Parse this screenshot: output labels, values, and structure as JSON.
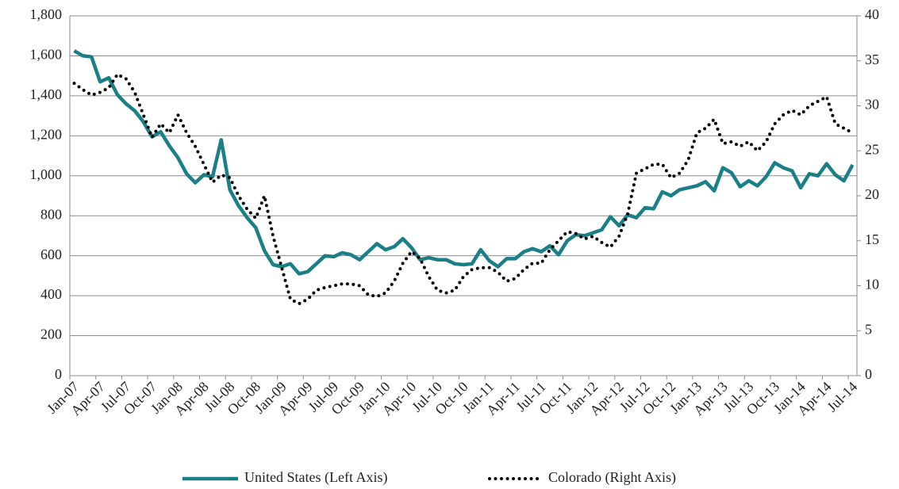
{
  "chart_data": {
    "type": "line",
    "categories": [
      "Jan-07",
      null,
      null,
      "Apr-07",
      null,
      null,
      "Jul-07",
      null,
      null,
      "Oct-07",
      null,
      null,
      "Jan-08",
      null,
      null,
      "Apr-08",
      null,
      null,
      "Jul-08",
      null,
      null,
      "Oct-08",
      null,
      null,
      "Jan-09",
      null,
      null,
      "Apr-09",
      null,
      null,
      "Jul-09",
      null,
      null,
      "Oct-09",
      null,
      null,
      "Jan-10",
      null,
      null,
      "Apr-10",
      null,
      null,
      "Jul-10",
      null,
      null,
      "Oct-10",
      null,
      null,
      "Jan-11",
      null,
      null,
      "Apr-11",
      null,
      null,
      "Jul-11",
      null,
      null,
      "Oct-11",
      null,
      null,
      "Jan-12",
      null,
      null,
      "Apr-12",
      null,
      null,
      "Jul-12",
      null,
      null,
      "Oct-12",
      null,
      null,
      "Jan-13",
      null,
      null,
      "Apr-13",
      null,
      null,
      "Jul-13",
      null,
      null,
      "Oct-13",
      null,
      null,
      "Jan-14",
      null,
      null,
      "Apr-14",
      null,
      null,
      "Jul-14"
    ],
    "series": [
      {
        "name": "United States (Left Axis)",
        "color": "#1a7f86",
        "style": "solid",
        "axis": "y",
        "values": [
          1625,
          1600,
          1595,
          1470,
          1490,
          1405,
          1360,
          1325,
          1270,
          1195,
          1220,
          1150,
          1090,
          1010,
          965,
          1005,
          995,
          1180,
          930,
          850,
          790,
          740,
          625,
          555,
          545,
          560,
          510,
          520,
          560,
          600,
          595,
          615,
          605,
          580,
          620,
          660,
          630,
          645,
          685,
          640,
          580,
          590,
          580,
          580,
          560,
          555,
          560,
          630,
          575,
          545,
          585,
          585,
          620,
          635,
          620,
          650,
          605,
          675,
          705,
          700,
          715,
          730,
          795,
          750,
          805,
          790,
          840,
          835,
          920,
          900,
          930,
          940,
          950,
          970,
          925,
          1040,
          1015,
          945,
          975,
          950,
          995,
          1065,
          1040,
          1025,
          940,
          1010,
          1000,
          1060,
          1005,
          975,
          1055
        ]
      },
      {
        "name": "Colorado (Right Axis)",
        "color": "#000000",
        "style": "dotted",
        "axis": "y2",
        "values": [
          32.5,
          31.8,
          31.2,
          31.5,
          32,
          33.5,
          33,
          31.5,
          29,
          26.5,
          28,
          27,
          29,
          27,
          25.5,
          23.5,
          21.5,
          22.3,
          22,
          20,
          18.5,
          17.5,
          20,
          15.5,
          12,
          8.5,
          8,
          8.5,
          9.5,
          9.8,
          10,
          10.2,
          10.2,
          10,
          9,
          8.8,
          9.2,
          10.5,
          12.5,
          13.8,
          13,
          11,
          9.5,
          9.2,
          9.5,
          11,
          11.8,
          12,
          12,
          11.5,
          10.5,
          10.8,
          11.8,
          12.5,
          12.5,
          14,
          15,
          16,
          15.8,
          15.2,
          15.5,
          14.8,
          14.3,
          15.5,
          18,
          22.5,
          23,
          23.5,
          23.5,
          22,
          22.5,
          24,
          27,
          27.5,
          28.5,
          25.8,
          26,
          25.5,
          26,
          25,
          26,
          28,
          29,
          29.5,
          29,
          30,
          30.5,
          31,
          28,
          27.5,
          27
        ]
      }
    ],
    "ylim": [
      0,
      1800
    ],
    "yticks": [
      0,
      200,
      400,
      600,
      800,
      {
        "value": 1000,
        "label": "1,000"
      },
      {
        "value": 1200,
        "label": "1,200"
      },
      {
        "value": 1400,
        "label": "1,400"
      },
      {
        "value": 1600,
        "label": "1,600"
      },
      {
        "value": 1800,
        "label": "1,800"
      }
    ],
    "y2lim": [
      0,
      40
    ],
    "y2ticks": [
      0,
      5,
      10,
      15,
      20,
      25,
      30,
      35,
      40
    ],
    "grid": true,
    "legend": "bottom"
  }
}
